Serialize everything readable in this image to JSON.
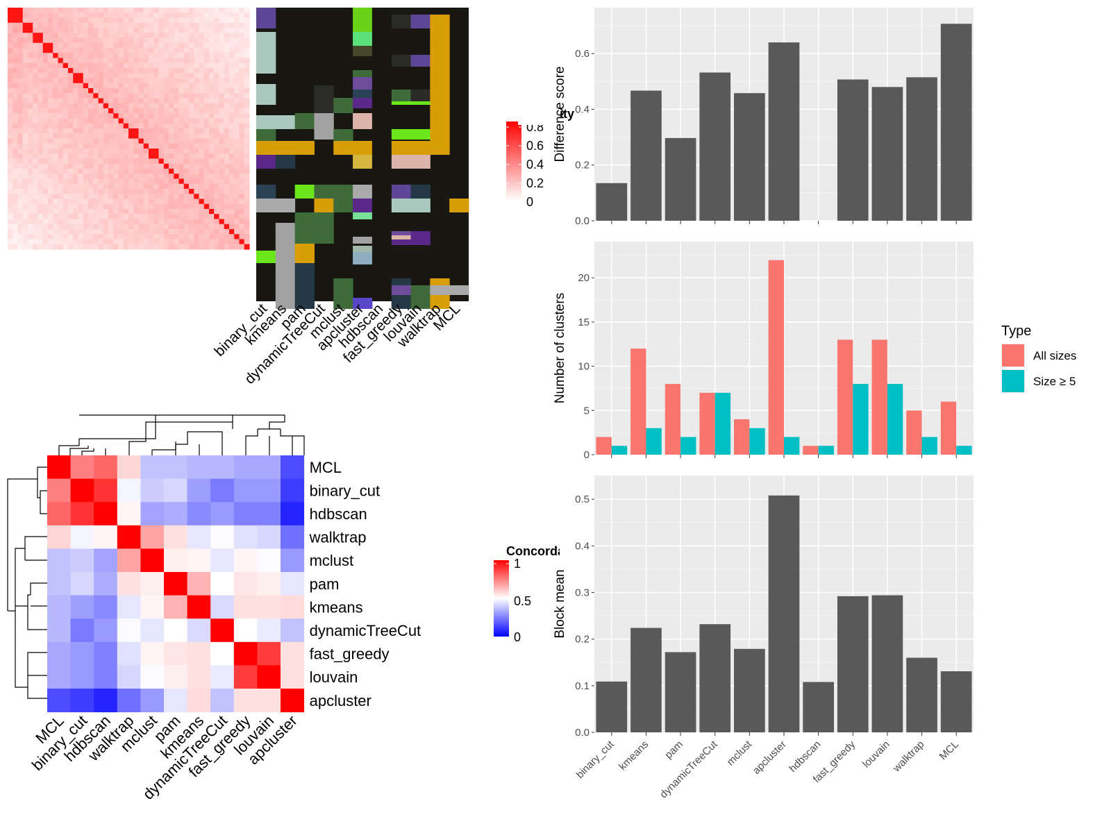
{
  "methods_sim_order": [
    "binary_cut",
    "kmeans",
    "pam",
    "dynamicTreeCut",
    "mclust",
    "apcluster",
    "hdbscan",
    "fast_greedy",
    "louvain",
    "walktrap",
    "MCL"
  ],
  "similarity_legend": {
    "title": "Similarity",
    "ticks": [
      "0.8",
      "0.6",
      "0.4",
      "0.2",
      "0"
    ]
  },
  "concordance_heatmap": {
    "order": [
      "MCL",
      "binary_cut",
      "hdbscan",
      "walktrap",
      "mclust",
      "pam",
      "kmeans",
      "dynamicTreeCut",
      "fast_greedy",
      "louvain",
      "apcluster"
    ],
    "values": [
      [
        1.0,
        0.75,
        0.8,
        0.58,
        0.38,
        0.38,
        0.36,
        0.36,
        0.33,
        0.33,
        0.15
      ],
      [
        0.75,
        1.0,
        0.9,
        0.48,
        0.4,
        0.42,
        0.31,
        0.24,
        0.3,
        0.3,
        0.12
      ],
      [
        0.8,
        0.9,
        1.0,
        0.52,
        0.32,
        0.34,
        0.27,
        0.3,
        0.25,
        0.25,
        0.07
      ],
      [
        0.58,
        0.48,
        0.52,
        1.0,
        0.68,
        0.56,
        0.45,
        0.49,
        0.44,
        0.42,
        0.22
      ],
      [
        0.38,
        0.4,
        0.32,
        0.68,
        1.0,
        0.53,
        0.52,
        0.45,
        0.52,
        0.49,
        0.3
      ],
      [
        0.38,
        0.42,
        0.34,
        0.56,
        0.53,
        1.0,
        0.65,
        0.5,
        0.55,
        0.53,
        0.45
      ],
      [
        0.36,
        0.31,
        0.27,
        0.45,
        0.52,
        0.65,
        1.0,
        0.43,
        0.56,
        0.56,
        0.57
      ],
      [
        0.36,
        0.24,
        0.3,
        0.49,
        0.45,
        0.5,
        0.43,
        1.0,
        0.5,
        0.46,
        0.38
      ],
      [
        0.33,
        0.3,
        0.25,
        0.44,
        0.52,
        0.55,
        0.56,
        0.5,
        1.0,
        0.88,
        0.56
      ],
      [
        0.33,
        0.3,
        0.25,
        0.42,
        0.49,
        0.53,
        0.56,
        0.46,
        0.88,
        1.0,
        0.56
      ],
      [
        0.15,
        0.12,
        0.07,
        0.22,
        0.3,
        0.45,
        0.57,
        0.38,
        0.56,
        0.56,
        1.0
      ]
    ]
  },
  "concordance_legend": {
    "title": "Concordance",
    "ticks": [
      "1",
      "0.5",
      "0"
    ]
  },
  "chart_data": [
    {
      "type": "bar",
      "categories": [
        "binary_cut",
        "kmeans",
        "pam",
        "dynamicTreeCut",
        "mclust",
        "apcluster",
        "hdbscan",
        "fast_greedy",
        "louvain",
        "walktrap",
        "MCL"
      ],
      "values": [
        0.135,
        0.467,
        0.297,
        0.532,
        0.458,
        0.64,
        null,
        0.507,
        0.48,
        0.515,
        0.707
      ],
      "ylabel": "Difference score",
      "ylim": [
        0,
        0.73
      ],
      "yticks": [
        "0.0",
        "0.2",
        "0.4",
        "0.6"
      ],
      "grid": true
    },
    {
      "type": "bar",
      "categories": [
        "binary_cut",
        "kmeans",
        "pam",
        "dynamicTreeCut",
        "mclust",
        "apcluster",
        "hdbscan",
        "fast_greedy",
        "louvain",
        "walktrap",
        "MCL"
      ],
      "series": [
        {
          "name": "All sizes",
          "color": "#F8766D",
          "values": [
            2,
            12,
            8,
            7,
            4,
            22,
            1,
            13,
            13,
            5,
            6
          ]
        },
        {
          "name": "Size ≥ 5",
          "color": "#00BFC4",
          "values": [
            1,
            3,
            2,
            7,
            3,
            2,
            1,
            8,
            8,
            2,
            1
          ]
        }
      ],
      "ylabel": "Number of clusters",
      "ylim": [
        0,
        23
      ],
      "yticks": [
        "0",
        "5",
        "10",
        "15",
        "20"
      ],
      "legend": {
        "title": "Type",
        "position": "right"
      },
      "grid": true
    },
    {
      "type": "bar",
      "categories": [
        "binary_cut",
        "kmeans",
        "pam",
        "dynamicTreeCut",
        "mclust",
        "apcluster",
        "hdbscan",
        "fast_greedy",
        "louvain",
        "walktrap",
        "MCL"
      ],
      "values": [
        0.109,
        0.224,
        0.172,
        0.232,
        0.179,
        0.508,
        0.108,
        0.292,
        0.294,
        0.16,
        0.131
      ],
      "ylabel": "Block mean",
      "ylim": [
        0,
        0.53
      ],
      "yticks": [
        "0.0",
        "0.1",
        "0.2",
        "0.3",
        "0.4",
        "0.5"
      ],
      "grid": true
    }
  ]
}
